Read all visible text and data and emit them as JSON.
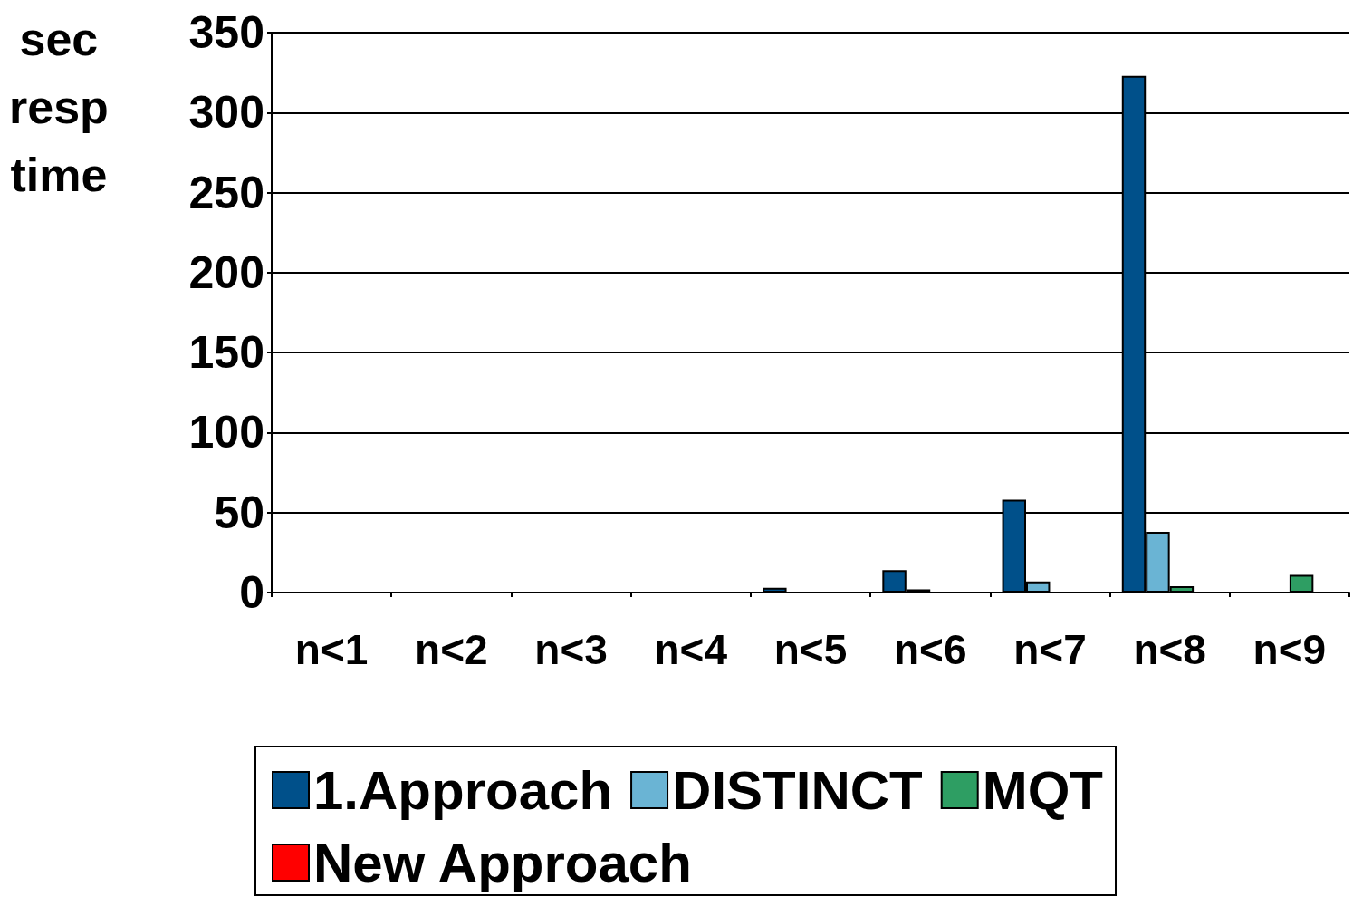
{
  "chart_data": {
    "type": "bar",
    "ylabel": "sec\nresp\ntime",
    "categories": [
      "n<1",
      "n<2",
      "n<3",
      "n<4",
      "n<5",
      "n<6",
      "n<7",
      "n<8",
      "n<9"
    ],
    "series": [
      {
        "name": "1.Approach",
        "color": "#00508a",
        "values": [
          0,
          0,
          0,
          0,
          3,
          14,
          58,
          323,
          null
        ]
      },
      {
        "name": "DISTINCT",
        "color": "#6ab4d4",
        "values": [
          0,
          0,
          0,
          0,
          0,
          2,
          7,
          38,
          null
        ]
      },
      {
        "name": "MQT",
        "color": "#2e9e63",
        "values": [
          0,
          0,
          0,
          0,
          0,
          0,
          0,
          4,
          11
        ]
      },
      {
        "name": "New Approach",
        "color": "#ff0000",
        "values": [
          0,
          0,
          0,
          0,
          0,
          0,
          0,
          0,
          0
        ]
      }
    ],
    "ylim": [
      0,
      350
    ],
    "yticks": [
      0,
      50,
      100,
      150,
      200,
      250,
      300,
      350
    ],
    "grid": "y",
    "legend": "bottom"
  }
}
